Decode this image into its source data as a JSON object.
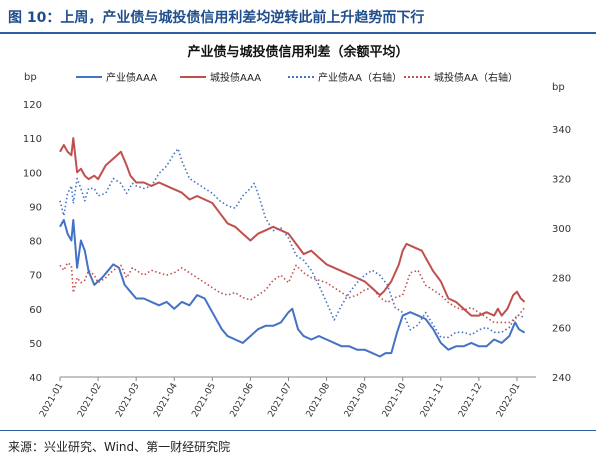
{
  "figure": {
    "caption": "图 10：上周，产业债与城投债信用利差均逆转此前上升趋势而下行",
    "source": "来源：兴业研究、Wind、第一财经研究院"
  },
  "chart_data": {
    "type": "line",
    "title": "产业债与城投债信用利差（余额平均）",
    "y_left": {
      "unit": "bp",
      "min": 40,
      "max": 120,
      "ticks": [
        40,
        50,
        60,
        70,
        80,
        90,
        100,
        110,
        120
      ]
    },
    "y_right": {
      "unit": "bp",
      "min": 240,
      "max": 350,
      "ticks": [
        240,
        260,
        280,
        300,
        320,
        340
      ]
    },
    "x_ticks": [
      "2021-01",
      "2021-02",
      "2021-03",
      "2021-04",
      "2021-05",
      "2021-06",
      "2021-07",
      "2021-08",
      "2021-09",
      "2021-10",
      "2021-11",
      "2021-12",
      "2022-01"
    ],
    "x_domain": [
      0,
      12.5
    ],
    "legend_position": "top",
    "series": [
      {
        "name": "产业债AAA",
        "axis": "left",
        "color": "#4472c4",
        "style": "solid",
        "points": [
          [
            0.0,
            84
          ],
          [
            0.1,
            86
          ],
          [
            0.2,
            82
          ],
          [
            0.3,
            80
          ],
          [
            0.35,
            86
          ],
          [
            0.45,
            72
          ],
          [
            0.55,
            80
          ],
          [
            0.65,
            77
          ],
          [
            0.75,
            71
          ],
          [
            0.9,
            67
          ],
          [
            1.0,
            68
          ],
          [
            1.1,
            69
          ],
          [
            1.25,
            71
          ],
          [
            1.4,
            73
          ],
          [
            1.55,
            72
          ],
          [
            1.7,
            67
          ],
          [
            1.85,
            65
          ],
          [
            2.0,
            63
          ],
          [
            2.2,
            63
          ],
          [
            2.4,
            62
          ],
          [
            2.6,
            61
          ],
          [
            2.8,
            62
          ],
          [
            3.0,
            60
          ],
          [
            3.2,
            62
          ],
          [
            3.4,
            61
          ],
          [
            3.6,
            64
          ],
          [
            3.8,
            63
          ],
          [
            3.95,
            60
          ],
          [
            4.1,
            57
          ],
          [
            4.25,
            54
          ],
          [
            4.4,
            52
          ],
          [
            4.6,
            51
          ],
          [
            4.8,
            50
          ],
          [
            5.0,
            52
          ],
          [
            5.2,
            54
          ],
          [
            5.4,
            55
          ],
          [
            5.6,
            55
          ],
          [
            5.8,
            56
          ],
          [
            6.0,
            59
          ],
          [
            6.1,
            60
          ],
          [
            6.25,
            54
          ],
          [
            6.4,
            52
          ],
          [
            6.6,
            51
          ],
          [
            6.8,
            52
          ],
          [
            7.0,
            51
          ],
          [
            7.2,
            50
          ],
          [
            7.4,
            49
          ],
          [
            7.6,
            49
          ],
          [
            7.8,
            48
          ],
          [
            8.0,
            48
          ],
          [
            8.2,
            47
          ],
          [
            8.4,
            46
          ],
          [
            8.55,
            47
          ],
          [
            8.7,
            47
          ],
          [
            8.85,
            53
          ],
          [
            9.0,
            58
          ],
          [
            9.2,
            59
          ],
          [
            9.4,
            58
          ],
          [
            9.6,
            57
          ],
          [
            9.8,
            54
          ],
          [
            10.0,
            50
          ],
          [
            10.2,
            48
          ],
          [
            10.4,
            49
          ],
          [
            10.6,
            49
          ],
          [
            10.8,
            50
          ],
          [
            11.0,
            49
          ],
          [
            11.2,
            49
          ],
          [
            11.4,
            51
          ],
          [
            11.6,
            50
          ],
          [
            11.8,
            52
          ],
          [
            11.95,
            56
          ],
          [
            12.05,
            54
          ],
          [
            12.2,
            53
          ]
        ]
      },
      {
        "name": "城投债AAA",
        "axis": "left",
        "color": "#c0504d",
        "style": "solid",
        "points": [
          [
            0.0,
            106
          ],
          [
            0.1,
            108
          ],
          [
            0.2,
            106
          ],
          [
            0.3,
            105
          ],
          [
            0.35,
            110
          ],
          [
            0.45,
            100
          ],
          [
            0.55,
            101
          ],
          [
            0.65,
            99
          ],
          [
            0.75,
            98
          ],
          [
            0.9,
            99
          ],
          [
            1.0,
            98
          ],
          [
            1.2,
            102
          ],
          [
            1.4,
            104
          ],
          [
            1.6,
            106
          ],
          [
            1.75,
            102
          ],
          [
            1.85,
            99
          ],
          [
            2.0,
            97
          ],
          [
            2.2,
            97
          ],
          [
            2.4,
            96
          ],
          [
            2.6,
            97
          ],
          [
            2.8,
            96
          ],
          [
            3.0,
            95
          ],
          [
            3.2,
            94
          ],
          [
            3.4,
            92
          ],
          [
            3.6,
            93
          ],
          [
            3.8,
            92
          ],
          [
            4.0,
            91
          ],
          [
            4.2,
            88
          ],
          [
            4.4,
            85
          ],
          [
            4.6,
            84
          ],
          [
            4.8,
            82
          ],
          [
            5.0,
            80
          ],
          [
            5.2,
            82
          ],
          [
            5.4,
            83
          ],
          [
            5.6,
            84
          ],
          [
            5.8,
            83
          ],
          [
            6.0,
            82
          ],
          [
            6.2,
            79
          ],
          [
            6.4,
            76
          ],
          [
            6.6,
            77
          ],
          [
            6.8,
            75
          ],
          [
            7.0,
            73
          ],
          [
            7.2,
            72
          ],
          [
            7.4,
            71
          ],
          [
            7.6,
            70
          ],
          [
            7.8,
            69
          ],
          [
            8.0,
            68
          ],
          [
            8.2,
            66
          ],
          [
            8.4,
            64
          ],
          [
            8.5,
            65
          ],
          [
            8.7,
            68
          ],
          [
            8.9,
            73
          ],
          [
            9.0,
            77
          ],
          [
            9.1,
            79
          ],
          [
            9.3,
            78
          ],
          [
            9.5,
            77
          ],
          [
            9.6,
            75
          ],
          [
            9.8,
            71
          ],
          [
            10.0,
            68
          ],
          [
            10.2,
            63
          ],
          [
            10.4,
            62
          ],
          [
            10.6,
            60
          ],
          [
            10.8,
            58
          ],
          [
            11.0,
            58
          ],
          [
            11.2,
            59
          ],
          [
            11.4,
            58
          ],
          [
            11.5,
            60
          ],
          [
            11.6,
            58
          ],
          [
            11.75,
            60
          ],
          [
            11.9,
            64
          ],
          [
            12.0,
            65
          ],
          [
            12.1,
            63
          ],
          [
            12.2,
            62
          ]
        ]
      },
      {
        "name": "产业债AA（右轴）",
        "axis": "right",
        "color": "#4472c4",
        "style": "dotted",
        "points": [
          [
            0.0,
            311
          ],
          [
            0.1,
            305
          ],
          [
            0.2,
            314
          ],
          [
            0.3,
            317
          ],
          [
            0.35,
            310
          ],
          [
            0.45,
            320
          ],
          [
            0.55,
            316
          ],
          [
            0.65,
            311
          ],
          [
            0.75,
            316
          ],
          [
            0.9,
            316
          ],
          [
            1.0,
            313
          ],
          [
            1.2,
            314
          ],
          [
            1.4,
            320
          ],
          [
            1.6,
            318
          ],
          [
            1.75,
            314
          ],
          [
            1.9,
            318
          ],
          [
            2.0,
            317
          ],
          [
            2.2,
            316
          ],
          [
            2.4,
            317
          ],
          [
            2.6,
            322
          ],
          [
            2.8,
            325
          ],
          [
            3.0,
            330
          ],
          [
            3.1,
            332
          ],
          [
            3.2,
            327
          ],
          [
            3.4,
            320
          ],
          [
            3.6,
            318
          ],
          [
            3.8,
            316
          ],
          [
            4.0,
            314
          ],
          [
            4.2,
            311
          ],
          [
            4.4,
            309
          ],
          [
            4.6,
            308
          ],
          [
            4.8,
            313
          ],
          [
            5.0,
            316
          ],
          [
            5.1,
            318
          ],
          [
            5.2,
            314
          ],
          [
            5.4,
            304
          ],
          [
            5.6,
            299
          ],
          [
            5.8,
            300
          ],
          [
            6.0,
            296
          ],
          [
            6.2,
            289
          ],
          [
            6.4,
            287
          ],
          [
            6.6,
            283
          ],
          [
            6.8,
            277
          ],
          [
            7.0,
            270
          ],
          [
            7.2,
            263
          ],
          [
            7.4,
            269
          ],
          [
            7.6,
            274
          ],
          [
            7.8,
            278
          ],
          [
            8.0,
            281
          ],
          [
            8.2,
            283
          ],
          [
            8.4,
            281
          ],
          [
            8.6,
            277
          ],
          [
            8.8,
            268
          ],
          [
            9.0,
            266
          ],
          [
            9.2,
            259
          ],
          [
            9.4,
            261
          ],
          [
            9.6,
            266
          ],
          [
            9.8,
            261
          ],
          [
            10.0,
            256
          ],
          [
            10.2,
            256
          ],
          [
            10.4,
            258
          ],
          [
            10.6,
            258
          ],
          [
            10.8,
            257
          ],
          [
            11.0,
            259
          ],
          [
            11.2,
            260
          ],
          [
            11.4,
            258
          ],
          [
            11.6,
            258
          ],
          [
            11.8,
            260
          ],
          [
            12.0,
            265
          ],
          [
            12.2,
            264
          ]
        ]
      },
      {
        "name": "城投债AA（右轴）",
        "axis": "right",
        "color": "#c0504d",
        "style": "dotted",
        "points": [
          [
            0.0,
            285
          ],
          [
            0.1,
            283
          ],
          [
            0.2,
            286
          ],
          [
            0.3,
            285
          ],
          [
            0.35,
            274
          ],
          [
            0.45,
            280
          ],
          [
            0.55,
            278
          ],
          [
            0.65,
            279
          ],
          [
            0.75,
            283
          ],
          [
            0.9,
            281
          ],
          [
            1.0,
            278
          ],
          [
            1.2,
            280
          ],
          [
            1.4,
            283
          ],
          [
            1.6,
            285
          ],
          [
            1.75,
            280
          ],
          [
            1.9,
            284
          ],
          [
            2.0,
            283
          ],
          [
            2.2,
            281
          ],
          [
            2.4,
            283
          ],
          [
            2.6,
            282
          ],
          [
            2.8,
            281
          ],
          [
            3.0,
            282
          ],
          [
            3.2,
            284
          ],
          [
            3.4,
            282
          ],
          [
            3.6,
            280
          ],
          [
            3.8,
            278
          ],
          [
            4.0,
            276
          ],
          [
            4.2,
            274
          ],
          [
            4.4,
            273
          ],
          [
            4.6,
            274
          ],
          [
            4.8,
            272
          ],
          [
            5.0,
            271
          ],
          [
            5.2,
            273
          ],
          [
            5.4,
            275
          ],
          [
            5.6,
            279
          ],
          [
            5.8,
            281
          ],
          [
            6.0,
            278
          ],
          [
            6.2,
            285
          ],
          [
            6.4,
            282
          ],
          [
            6.6,
            280
          ],
          [
            6.8,
            279
          ],
          [
            7.0,
            278
          ],
          [
            7.2,
            276
          ],
          [
            7.4,
            274
          ],
          [
            7.6,
            272
          ],
          [
            7.8,
            273
          ],
          [
            8.0,
            275
          ],
          [
            8.2,
            276
          ],
          [
            8.4,
            272
          ],
          [
            8.6,
            270
          ],
          [
            8.8,
            272
          ],
          [
            9.0,
            273
          ],
          [
            9.2,
            282
          ],
          [
            9.4,
            283
          ],
          [
            9.6,
            277
          ],
          [
            9.8,
            275
          ],
          [
            10.0,
            273
          ],
          [
            10.2,
            270
          ],
          [
            10.4,
            268
          ],
          [
            10.6,
            267
          ],
          [
            10.8,
            268
          ],
          [
            11.0,
            266
          ],
          [
            11.2,
            264
          ],
          [
            11.4,
            262
          ],
          [
            11.6,
            262
          ],
          [
            11.8,
            262
          ],
          [
            12.0,
            264
          ],
          [
            12.2,
            268
          ]
        ]
      }
    ]
  }
}
